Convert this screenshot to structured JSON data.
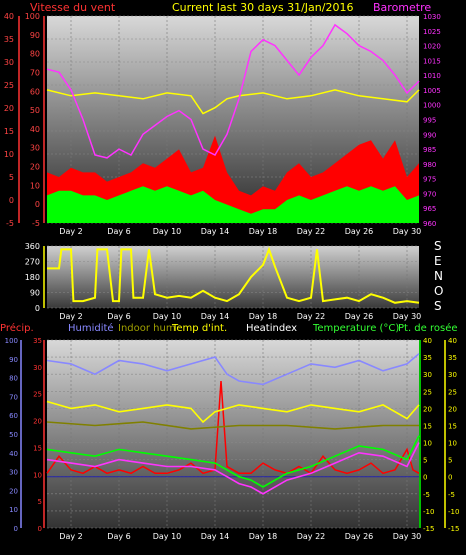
{
  "chart_data": [
    {
      "type": "line",
      "title": "Current last 30 days 31/Jan/2016",
      "legend_items": [
        "Vitesse du vent",
        "Barometre"
      ],
      "x_ticks": [
        "Day 2",
        "Day 6",
        "Day 10",
        "Day 14",
        "Day 18",
        "Day 22",
        "Day 26",
        "Day 30"
      ],
      "y_left_ticks": [
        "-5",
        "0",
        "5",
        "10",
        "15",
        "20",
        "25",
        "30",
        "35",
        "40"
      ],
      "y_left2_ticks": [
        "-5",
        "0",
        "10",
        "20",
        "30",
        "40",
        "50",
        "60",
        "70",
        "80",
        "90",
        "100"
      ],
      "y_right_ticks": [
        "960",
        "965",
        "970",
        "975",
        "980",
        "985",
        "990",
        "995",
        "1000",
        "1005",
        "1010",
        "1015",
        "1020",
        "1025",
        "1030"
      ],
      "ylim_left": [
        -5,
        40
      ],
      "ylim_right": [
        960,
        1030
      ],
      "series": [
        {
          "name": "Barometre",
          "color": "#ff33ff",
          "x": [
            0,
            1,
            2,
            3,
            4,
            5,
            6,
            7,
            8,
            9,
            10,
            11,
            12,
            13,
            14,
            15,
            16,
            17,
            18,
            19,
            20,
            21,
            22,
            23,
            24,
            25,
            26,
            27,
            28,
            29,
            30,
            31
          ],
          "y": [
            1012,
            1011,
            1005,
            995,
            983,
            982,
            985,
            983,
            990,
            993,
            996,
            998,
            995,
            985,
            983,
            990,
            1002,
            1018,
            1022,
            1020,
            1015,
            1010,
            1016,
            1020,
            1027,
            1024,
            1020,
            1018,
            1015,
            1010,
            1004,
            1008
          ]
        },
        {
          "color": "#ffff00",
          "x": [
            0,
            2,
            4,
            6,
            8,
            10,
            12,
            13,
            14,
            15,
            16,
            18,
            20,
            22,
            24,
            26,
            28,
            30,
            31
          ],
          "y": [
            1005,
            1003,
            1004,
            1003,
            1002,
            1004,
            1003,
            997,
            999,
            1002,
            1003,
            1004,
            1002,
            1003,
            1005,
            1003,
            1002,
            1001,
            1005
          ]
        },
        {
          "color": "#ff0000",
          "x": [
            0,
            1,
            2,
            3,
            4,
            5,
            6,
            7,
            8,
            9,
            10,
            11,
            12,
            13,
            14,
            15,
            16,
            17,
            18,
            19,
            20,
            21,
            22,
            23,
            24,
            25,
            26,
            27,
            28,
            29,
            30,
            31
          ],
          "y": [
            6,
            5,
            7,
            6,
            6,
            4,
            5,
            6,
            8,
            7,
            9,
            11,
            6,
            7,
            14,
            6,
            2,
            1,
            3,
            2,
            6,
            8,
            5,
            6,
            8,
            10,
            12,
            13,
            9,
            13,
            5,
            8
          ]
        },
        {
          "color": "#00ff00",
          "x": [
            0,
            1,
            2,
            3,
            4,
            5,
            6,
            7,
            8,
            9,
            10,
            11,
            12,
            13,
            14,
            15,
            16,
            17,
            18,
            19,
            20,
            21,
            22,
            23,
            24,
            25,
            26,
            27,
            28,
            29,
            30,
            31
          ],
          "y": [
            1,
            2,
            2,
            1,
            1,
            0,
            1,
            2,
            3,
            2,
            3,
            2,
            1,
            2,
            0,
            -1,
            -2,
            -3,
            -2,
            -2,
            0,
            1,
            0,
            1,
            2,
            3,
            2,
            3,
            2,
            3,
            0,
            1
          ]
        }
      ]
    },
    {
      "type": "line",
      "legend_items": [
        "S",
        "E",
        "N",
        "O",
        "S"
      ],
      "x_ticks": [
        "Day 2",
        "Day 6",
        "Day 10",
        "Day 14",
        "Day 18",
        "Day 22",
        "Day 26",
        "Day 30"
      ],
      "y_ticks": [
        "0",
        "90",
        "180",
        "270",
        "360"
      ],
      "ylim": [
        0,
        360
      ],
      "series": [
        {
          "color": "#ffff00",
          "x": [
            0,
            1,
            1.2,
            2,
            2.2,
            3,
            4,
            4.2,
            5,
            5.5,
            6,
            6.2,
            7,
            7.2,
            8,
            8.5,
            9,
            10,
            11,
            12,
            13,
            14,
            15,
            16,
            17,
            18,
            18.5,
            19,
            20,
            21,
            22,
            22.5,
            23,
            24,
            25,
            26,
            27,
            28,
            29,
            30,
            31
          ],
          "y": [
            230,
            230,
            340,
            340,
            40,
            40,
            60,
            340,
            340,
            40,
            40,
            340,
            340,
            60,
            60,
            340,
            80,
            60,
            70,
            60,
            100,
            60,
            40,
            80,
            180,
            250,
            340,
            240,
            60,
            40,
            60,
            340,
            40,
            50,
            60,
            40,
            80,
            60,
            30,
            40,
            30
          ]
        }
      ]
    },
    {
      "type": "line",
      "legend_items": [
        "Précip.",
        "Humidité",
        "Indoor hum",
        "Temp d'int.",
        "Heatindex",
        "Temperature (°C)",
        "Pt. de rosée"
      ],
      "x_ticks": [
        "Day 2",
        "Day 6",
        "Day 10",
        "Day 14",
        "Day 18",
        "Day 22",
        "Day 26",
        "Day 30"
      ],
      "y_left_ticks": [
        "0",
        "10",
        "20",
        "30",
        "40",
        "50",
        "60",
        "70",
        "80",
        "90",
        "100"
      ],
      "y_left2_ticks": [
        "0",
        "5",
        "10",
        "15",
        "20",
        "25",
        "30",
        "35"
      ],
      "y_right_ticks": [
        "-15",
        "-10",
        "-5",
        "0",
        "5",
        "10",
        "15",
        "20",
        "25",
        "30",
        "35",
        "40"
      ],
      "ylim_right": [
        -15,
        40
      ],
      "series": [
        {
          "name": "Humidité",
          "color": "#8888ff",
          "x": [
            0,
            2,
            4,
            6,
            8,
            10,
            12,
            14,
            15,
            16,
            18,
            20,
            22,
            24,
            26,
            28,
            30,
            31
          ],
          "y": [
            34,
            33,
            30,
            34,
            33,
            31,
            33,
            35,
            30,
            28,
            27,
            30,
            33,
            32,
            34,
            31,
            33,
            36
          ]
        },
        {
          "name": "Temp d'int.",
          "color": "#ffff00",
          "x": [
            0,
            2,
            4,
            6,
            8,
            10,
            12,
            13,
            14,
            15,
            16,
            18,
            20,
            22,
            24,
            26,
            28,
            30,
            31
          ],
          "y": [
            22,
            20,
            21,
            19,
            20,
            21,
            20,
            16,
            19,
            20,
            21,
            20,
            19,
            21,
            20,
            19,
            21,
            17,
            21
          ]
        },
        {
          "name": "Indoor hum",
          "color": "#808000",
          "x": [
            0,
            4,
            8,
            12,
            16,
            20,
            24,
            28,
            31
          ],
          "y": [
            16,
            15,
            16,
            14,
            15,
            15,
            14,
            15,
            15
          ]
        },
        {
          "name": "Temperature (°C)",
          "color": "#00ff00",
          "x": [
            0,
            2,
            4,
            6,
            8,
            10,
            12,
            14,
            15,
            16,
            17,
            18,
            20,
            22,
            24,
            26,
            28,
            30,
            31
          ],
          "y": [
            8,
            7,
            6,
            8,
            7,
            6,
            5,
            4,
            2,
            0,
            -1,
            -3,
            1,
            3,
            6,
            9,
            8,
            5,
            12
          ]
        },
        {
          "name": "Pt. de rosée",
          "color": "#ff33ff",
          "x": [
            0,
            2,
            4,
            6,
            8,
            10,
            12,
            14,
            15,
            16,
            17,
            18,
            20,
            22,
            24,
            26,
            28,
            30,
            31
          ],
          "y": [
            5,
            4,
            3,
            5,
            4,
            3,
            3,
            2,
            0,
            -2,
            -3,
            -5,
            -1,
            1,
            4,
            7,
            6,
            3,
            10
          ]
        },
        {
          "name": "Précip.",
          "color": "#ff0000",
          "x": [
            0,
            1,
            2,
            3,
            4,
            5,
            6,
            7,
            8,
            9,
            10,
            11,
            12,
            13,
            14,
            14.5,
            15,
            16,
            17,
            18,
            19,
            20,
            21,
            22,
            23,
            24,
            25,
            26,
            27,
            28,
            29,
            30,
            30.5,
            31
          ],
          "y": [
            1,
            6,
            2,
            1,
            3,
            1,
            2,
            1,
            3,
            1,
            1,
            2,
            4,
            1,
            2,
            28,
            3,
            1,
            1,
            4,
            2,
            1,
            3,
            1,
            6,
            2,
            1,
            2,
            4,
            1,
            2,
            8,
            2,
            1
          ]
        }
      ]
    }
  ],
  "labels": {
    "top_title": "Current last 30 days 31/Jan/2016",
    "top_left": "Vitesse du vent",
    "top_right": "Barometre",
    "dir_letters": [
      "S",
      "E",
      "N",
      "O",
      "S"
    ],
    "bottom_legend": [
      "Précip.",
      "Humidité",
      "Indoor hum",
      "Temp d'int.",
      "Heatindex",
      "Temperature (°C)",
      "Pt. de rosée"
    ]
  }
}
